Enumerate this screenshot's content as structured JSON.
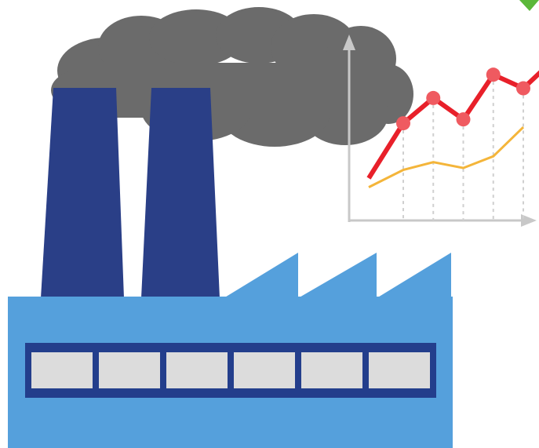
{
  "illustration": {
    "subject": "factory-with-rising-chart",
    "colors": {
      "smoke": "#6b6b6b",
      "chimney": "#2a3f87",
      "building": "#55a0dc",
      "building_edge": "#3f86c6",
      "window_frame": "#233e8c",
      "window_pane": "#dcdcdc",
      "axis": "#c8c8c8",
      "gridline": "#cfcfcf",
      "series_red": "#e8202a",
      "series_red_marker": "#ef5a60",
      "series_orange": "#f4b53a",
      "corner_mark": "#5bb83a"
    },
    "window_count": 6
  },
  "chart_data": {
    "type": "line",
    "x": [
      1,
      2,
      3,
      4,
      5
    ],
    "series": [
      {
        "values": [
          5.0,
          6.3,
          5.2,
          7.5,
          6.8
        ],
        "markers": true
      },
      {
        "values": [
          2.6,
          3.0,
          2.7,
          3.3,
          4.8
        ],
        "markers": false
      }
    ],
    "ylim": [
      0,
      9
    ],
    "grid": "vertical-dashed",
    "title": "",
    "xlabel": "",
    "ylabel": ""
  }
}
